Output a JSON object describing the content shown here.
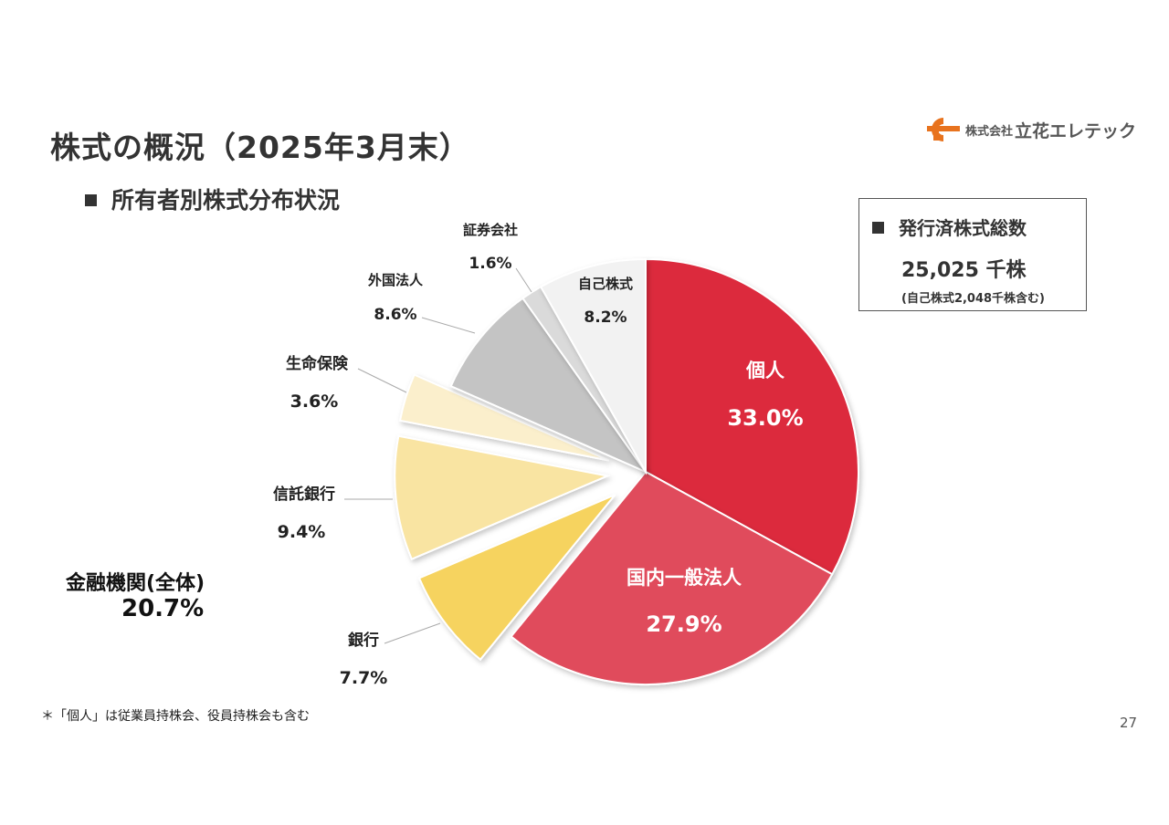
{
  "page": {
    "title": "株式の概況（2025年3月末）",
    "subtitle": "所有者別株式分布状況",
    "page_number": "27",
    "footnote": "＊「個人」は従業員持株会、役員持株会も含む"
  },
  "logo": {
    "mark_text": "TC",
    "small_text": "株式会社",
    "name": "立花エレテック"
  },
  "info_box": {
    "heading": "発行済株式総数",
    "value": "25,025 千株",
    "note": "(自己株式2,048千株含む)"
  },
  "financial_total": {
    "label": "金融機関(全体)",
    "value": "20.7%"
  },
  "chart_data": {
    "type": "pie",
    "start": "12 o'clock",
    "direction": "clockwise",
    "slices": [
      {
        "label": "個人",
        "value": 33.0,
        "display": "33.0%",
        "color": "#dc2a3e"
      },
      {
        "label": "国内一般法人",
        "value": 27.9,
        "display": "27.9%",
        "color": "#e04b5c"
      },
      {
        "label": "銀行",
        "value": 7.7,
        "display": "7.7%",
        "color": "#f6d35e"
      },
      {
        "label": "信託銀行",
        "value": 9.4,
        "display": "9.4%",
        "color": "#f9e4a2"
      },
      {
        "label": "生命保険",
        "value": 3.6,
        "display": "3.6%",
        "color": "#fbefcc"
      },
      {
        "label": "外国法人",
        "value": 8.6,
        "display": "8.6%",
        "color": "#c4c4c4"
      },
      {
        "label": "証券会社",
        "value": 1.6,
        "display": "1.6%",
        "color": "#dadada"
      },
      {
        "label": "自己株式",
        "value": 8.2,
        "display": "8.2%",
        "color": "#f2f2f2"
      }
    ]
  }
}
